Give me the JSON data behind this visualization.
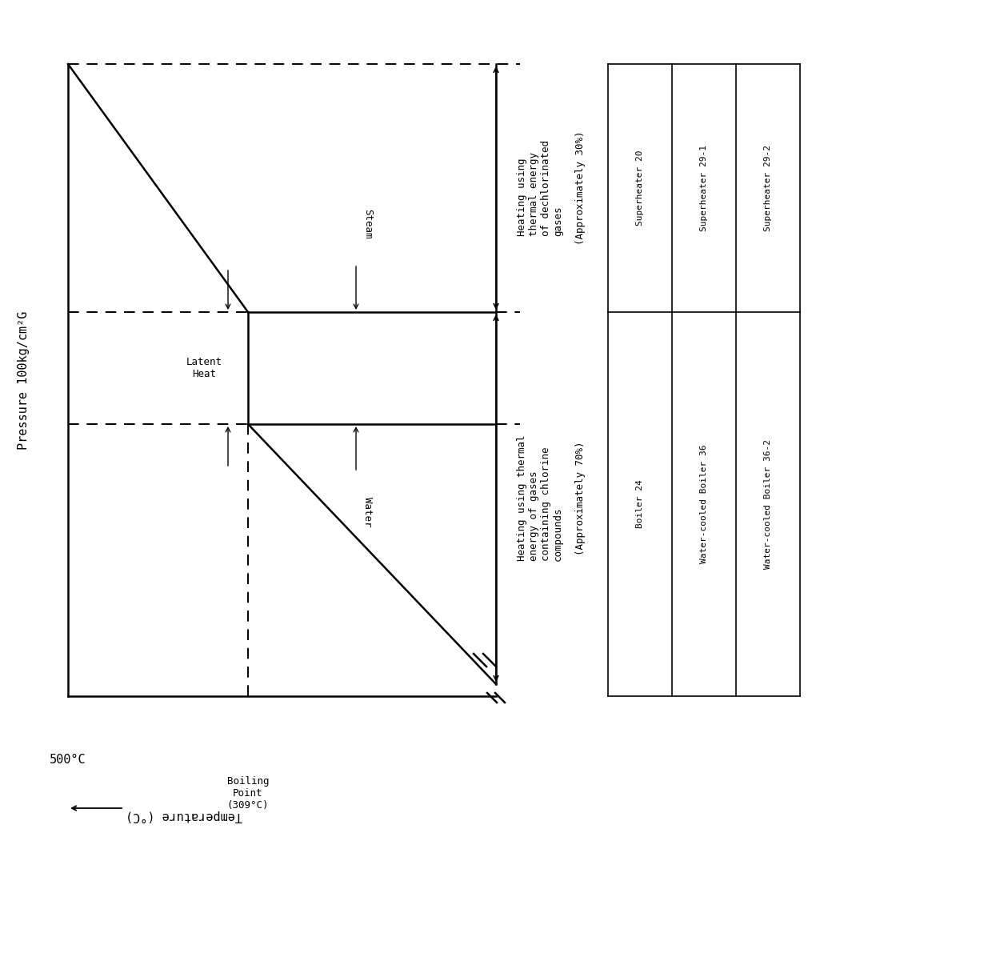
{
  "bg_color": "#ffffff",
  "ylabel": "Pressure 100kg/cm²G",
  "xlabel": "Temperature (°C)",
  "temp_500": "500°C",
  "temp_boiling": "Boiling\nPoint\n(309°C)",
  "latent_heat_label": "Latent\nHeat",
  "water_label": "Water",
  "steam_label": "Steam",
  "heating_chlorine": "Heating using thermal\nenergy of gases\ncontaining chlorine\ncompounds",
  "heating_chlorine_pct": "(Approximately 70%)",
  "heating_dechlor": "Heating using\nthermal energy\nof dechlorinated\ngases",
  "heating_dechlor_pct": "(Approximately 30%)",
  "table_bottom_row": [
    "Boiler 24",
    "Water-cooled Boiler 36",
    "Water-cooled Boiler 36-2"
  ],
  "table_top_row": [
    "Superheater 20",
    "Superheater 29-1",
    "Superheater 29-2"
  ],
  "font_size": 11,
  "small_font": 9,
  "mono_font": "DejaVu Sans Mono"
}
